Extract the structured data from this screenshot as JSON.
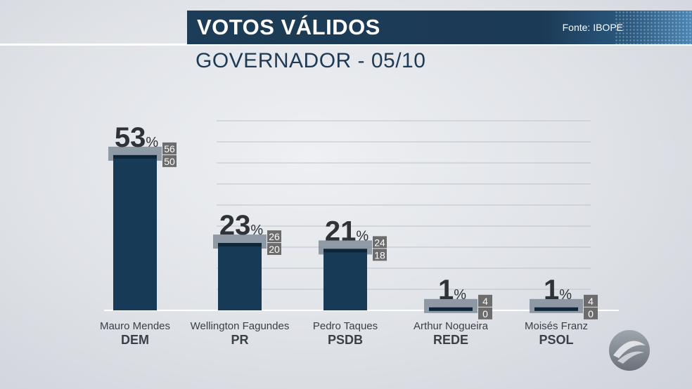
{
  "header": {
    "title": "VOTOS VÁLIDOS",
    "source": "Fonte: IBOPE",
    "subtitle": "GOVERNADOR - 05/10"
  },
  "colors": {
    "bar": "#173a56",
    "bar_top": "#0e2638",
    "margin_band": "#7f8c99",
    "range_box": "#6c6c6c",
    "banner": "#1d3c57"
  },
  "chart_data": {
    "type": "bar",
    "title": "VOTOS VÁLIDOS",
    "subtitle": "GOVERNADOR - 05/10",
    "categories": [
      "Mauro Mendes",
      "Wellington Fagundes",
      "Pedro Taques",
      "Arthur Nogueira",
      "Moisés Franz"
    ],
    "parties": [
      "DEM",
      "PR",
      "PSDB",
      "REDE",
      "PSOL"
    ],
    "values": [
      53,
      23,
      21,
      1,
      1
    ],
    "value_unit": "%",
    "upper": [
      56,
      26,
      24,
      4,
      4
    ],
    "lower": [
      50,
      20,
      18,
      0,
      0
    ],
    "ylim": [
      0,
      64
    ],
    "grid": true,
    "xlabel": "",
    "ylabel": ""
  },
  "logo": {
    "name": "tv-station-logo-icon"
  }
}
